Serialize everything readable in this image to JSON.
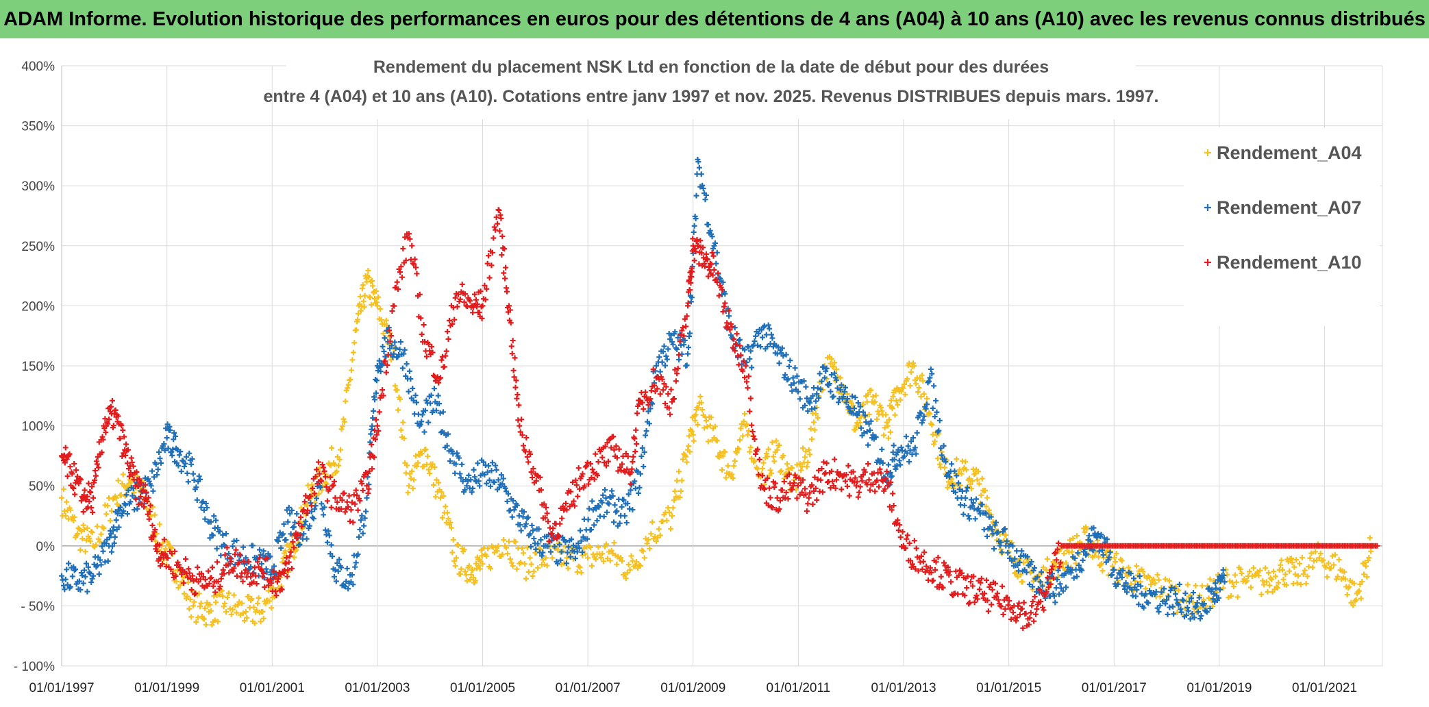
{
  "header": {
    "banner": "ADAM Informe. Evolution historique des performances en euros pour des détentions de 4 ans (A04) à 10 ans (A10) avec les revenus connus distribués"
  },
  "chart_data": {
    "type": "scatter",
    "title_line1": "Rendement du placement NSK Ltd en fonction de la date de début pour des durées",
    "title_line2": "entre 4 (A04) et 10 ans (A10). Cotations entre janv 1997 et nov. 2025. Revenus DISTRIBUES depuis mars. 1997.",
    "xlabel": "",
    "ylabel": "",
    "x_ticks": [
      "01/01/1997",
      "01/01/1999",
      "01/01/2001",
      "01/01/2003",
      "01/01/2005",
      "01/01/2007",
      "01/01/2009",
      "01/01/2011",
      "01/01/2013",
      "01/01/2015",
      "01/01/2017",
      "01/01/2019",
      "01/01/2021"
    ],
    "y_ticks": [
      "400%",
      "350%",
      "300%",
      "250%",
      "200%",
      "150%",
      "100%",
      "50%",
      "0%",
      "- 50%",
      "- 100%"
    ],
    "xlim": [
      1997.0,
      2022.1
    ],
    "ylim": [
      -100,
      400
    ],
    "grid": true,
    "legend_position": "top-right",
    "marker": "+",
    "series": [
      {
        "name": "Rendement_A04",
        "color": "#f5c020",
        "x": [
          1997.0,
          1997.3,
          1997.6,
          1998.0,
          1998.3,
          1998.6,
          1998.9,
          1999.2,
          1999.5,
          1999.8,
          2000.1,
          2000.5,
          2000.8,
          2001.1,
          2001.4,
          2001.7,
          2002.0,
          2002.3,
          2002.6,
          2002.8,
          2003.0,
          2003.3,
          2003.6,
          2003.9,
          2004.2,
          2004.5,
          2004.8,
          2005.0,
          2005.4,
          2005.8,
          2006.2,
          2006.6,
          2007.0,
          2007.4,
          2007.8,
          2008.2,
          2008.6,
          2008.9,
          2009.1,
          2009.4,
          2009.7,
          2010.0,
          2010.3,
          2010.6,
          2010.9,
          2011.2,
          2011.5,
          2011.8,
          2012.1,
          2012.4,
          2012.7,
          2012.9,
          2013.2,
          2013.5,
          2013.8,
          2014.1,
          2014.4,
          2014.7,
          2015.0,
          2015.3,
          2015.6,
          2015.9,
          2016.2,
          2016.5,
          2016.8,
          2017.1,
          2017.5,
          2017.9,
          2018.3,
          2018.7,
          2019.1,
          2019.5,
          2019.9,
          2020.2,
          2020.5,
          2020.9,
          2021.3,
          2021.6,
          2021.9
        ],
        "y": [
          40,
          10,
          0,
          40,
          55,
          40,
          0,
          -20,
          -50,
          -55,
          -48,
          -55,
          -55,
          -30,
          0,
          40,
          60,
          80,
          180,
          220,
          200,
          160,
          50,
          80,
          40,
          -10,
          -20,
          -15,
          5,
          -15,
          -10,
          -10,
          -10,
          -5,
          -20,
          10,
          25,
          80,
          115,
          90,
          60,
          100,
          60,
          80,
          50,
          80,
          150,
          140,
          100,
          120,
          100,
          130,
          150,
          110,
          60,
          60,
          55,
          20,
          -5,
          -20,
          -30,
          -15,
          -5,
          5,
          -10,
          -20,
          -30,
          -35,
          -45,
          -45,
          -30,
          -30,
          -30,
          -20,
          -25,
          -10,
          -20,
          -45,
          0
        ]
      },
      {
        "name": "Rendement_A07",
        "color": "#1f6fb8",
        "x": [
          1997.0,
          1997.3,
          1997.6,
          1997.9,
          1998.1,
          1998.4,
          1998.7,
          1999.0,
          1999.2,
          1999.5,
          1999.8,
          2000.1,
          2000.5,
          2000.8,
          2001.0,
          2001.3,
          2001.6,
          2001.9,
          2002.2,
          2002.5,
          2002.8,
          2003.0,
          2003.2,
          2003.5,
          2003.8,
          2004.1,
          2004.4,
          2004.7,
          2005.0,
          2005.3,
          2005.6,
          2005.9,
          2006.2,
          2006.5,
          2006.8,
          2007.1,
          2007.4,
          2007.7,
          2008.0,
          2008.3,
          2008.6,
          2008.9,
          2009.1,
          2009.4,
          2009.7,
          2010.0,
          2010.3,
          2010.6,
          2010.9,
          2011.2,
          2011.5,
          2011.8,
          2012.1,
          2012.4,
          2012.7,
          2012.9,
          2013.2,
          2013.5,
          2013.8,
          2014.1,
          2014.4,
          2014.7,
          2015.0,
          2015.3,
          2015.6,
          2015.9,
          2016.2,
          2016.5,
          2016.7,
          2017.0,
          2017.3,
          2017.6,
          2018.0,
          2018.3,
          2018.6,
          2018.9,
          2019.1
        ],
        "y": [
          -25,
          -30,
          -25,
          0,
          30,
          40,
          50,
          90,
          80,
          60,
          20,
          0,
          -10,
          -15,
          -20,
          20,
          10,
          50,
          -20,
          -30,
          40,
          150,
          170,
          160,
          100,
          120,
          80,
          50,
          60,
          55,
          30,
          10,
          0,
          -5,
          -5,
          30,
          35,
          25,
          60,
          150,
          170,
          160,
          320,
          250,
          180,
          150,
          180,
          160,
          140,
          120,
          140,
          130,
          110,
          90,
          60,
          80,
          80,
          140,
          70,
          40,
          30,
          10,
          0,
          -20,
          -30,
          -35,
          -20,
          0,
          10,
          -20,
          -35,
          -40,
          -45,
          -45,
          -55,
          -40,
          -30
        ]
      },
      {
        "name": "Rendement_A10",
        "color": "#e21c1c",
        "x": [
          1997.0,
          1997.2,
          1997.4,
          1997.6,
          1997.8,
          1998.0,
          1998.2,
          1998.4,
          1998.6,
          1998.8,
          1999.0,
          1999.3,
          1999.6,
          1999.9,
          2000.2,
          2000.5,
          2000.8,
          2001.1,
          2001.3,
          2001.6,
          2001.9,
          2002.2,
          2002.5,
          2002.8,
          2003.0,
          2003.3,
          2003.6,
          2003.9,
          2004.2,
          2004.5,
          2004.8,
          2005.0,
          2005.3,
          2005.5,
          2005.7,
          2006.0,
          2006.3,
          2006.6,
          2006.9,
          2007.2,
          2007.5,
          2007.8,
          2008.0,
          2008.3,
          2008.6,
          2008.9,
          2009.0,
          2009.2,
          2009.4,
          2009.7,
          2010.0,
          2010.3,
          2010.6,
          2010.9,
          2011.2,
          2011.5,
          2011.8,
          2012.1,
          2012.4,
          2012.7,
          2013.0,
          2013.3,
          2013.6,
          2013.9,
          2014.2,
          2014.5,
          2014.8,
          2015.1,
          2015.4,
          2015.7,
          2016.0,
          2016.5,
          2017.0,
          2017.5,
          2018.0,
          2018.5,
          2019.0,
          2019.5,
          2020.0,
          2020.5,
          2021.0,
          2021.5,
          2022.0
        ],
        "y": [
          75,
          60,
          40,
          40,
          100,
          110,
          80,
          50,
          40,
          0,
          -10,
          -20,
          -30,
          -30,
          -10,
          -20,
          -20,
          -30,
          -20,
          30,
          60,
          40,
          30,
          50,
          100,
          200,
          260,
          170,
          140,
          210,
          200,
          200,
          280,
          200,
          100,
          60,
          10,
          30,
          60,
          70,
          80,
          60,
          120,
          140,
          120,
          200,
          250,
          240,
          230,
          180,
          150,
          50,
          40,
          50,
          40,
          60,
          60,
          50,
          60,
          50,
          0,
          -10,
          -20,
          -30,
          -35,
          -40,
          -45,
          -50,
          -60,
          -40,
          0,
          0,
          0,
          0,
          0,
          0,
          0,
          0,
          0,
          0,
          0,
          0,
          0
        ]
      }
    ]
  }
}
